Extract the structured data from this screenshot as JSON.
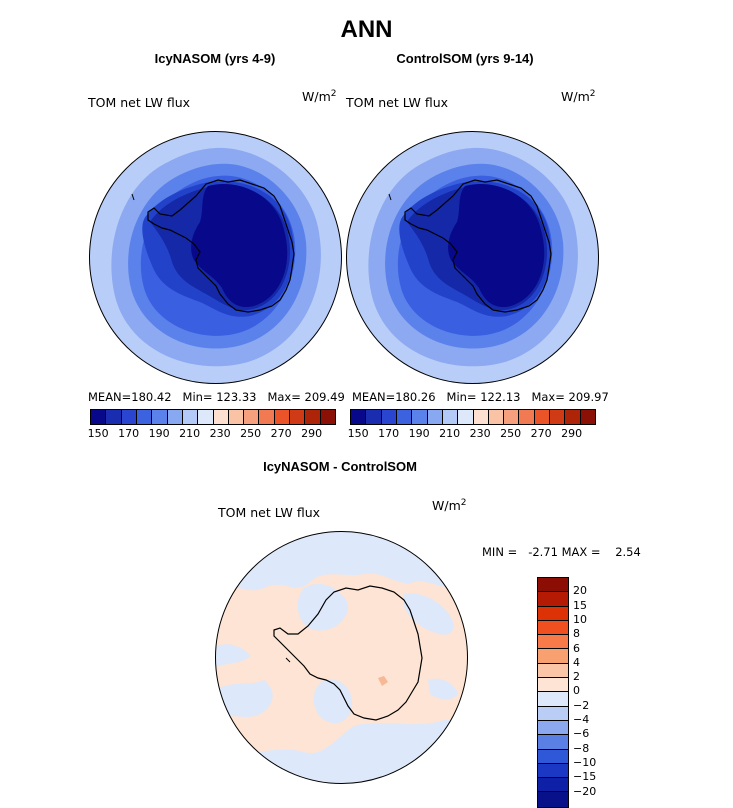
{
  "figure_title": "ANN",
  "panels": [
    {
      "title": "IcyNASOM (yrs 4-9)",
      "variable": "TOM net LW flux",
      "units_base": "W/m",
      "units_exp": "2",
      "mean": "180.42",
      "min": "123.33",
      "max": "209.49"
    },
    {
      "title": "ControlSOM (yrs 9-14)",
      "variable": "TOM net LW flux",
      "units_base": "W/m",
      "units_exp": "2",
      "mean": "180.26",
      "min": "122.13",
      "max": "209.97"
    }
  ],
  "stat_labels": {
    "mean": "MEAN=",
    "min": "Min=",
    "max": "Max="
  },
  "colorbar_top": {
    "colors": [
      "#08088a",
      "#1a2cb0",
      "#2a45cf",
      "#3d62e0",
      "#5b82ea",
      "#88a8f2",
      "#b3c9f7",
      "#dde9fb",
      "#fde0cf",
      "#fbc3a6",
      "#f6a07d",
      "#f27a52",
      "#eb5429",
      "#d03a14",
      "#ad2408",
      "#8b1006"
    ],
    "ticks": [
      "150",
      "170",
      "190",
      "210",
      "230",
      "250",
      "270",
      "290"
    ]
  },
  "diff_panel": {
    "title": "IcyNASOM - ControlSOM",
    "variable": "TOM net LW flux",
    "units_base": "W/m",
    "units_exp": "2",
    "min_label": "MIN =",
    "min": "-2.71",
    "max_label": "MAX =",
    "max": "2.54"
  },
  "colorbar_diff": {
    "colors": [
      "#8b0d04",
      "#b51a04",
      "#dc3206",
      "#f05020",
      "#f67a4a",
      "#f8a070",
      "#fbc6a8",
      "#fde4d4",
      "#dde8fa",
      "#b9cdf5",
      "#8ca8ee",
      "#5a80e6",
      "#2e58d8",
      "#1b38c4",
      "#0e20a6",
      "#08118a"
    ],
    "ticks": [
      "20",
      "15",
      "10",
      "8",
      "6",
      "4",
      "2",
      "0",
      "−2",
      "−4",
      "−6",
      "−8",
      "−10",
      "−15",
      "−20"
    ]
  },
  "map_colors": {
    "lvl1": "#b8cdf7",
    "lvl2": "#8ca9f1",
    "lvl3": "#5b82ea",
    "lvl4": "#3a5fe0",
    "lvl5": "#2243c9",
    "lvl6": "#1428a8",
    "lvl7": "#08088a",
    "diff_pos": "#fde4d4",
    "diff_neg": "#dde8fa",
    "diff_strong": "#f6b895"
  }
}
